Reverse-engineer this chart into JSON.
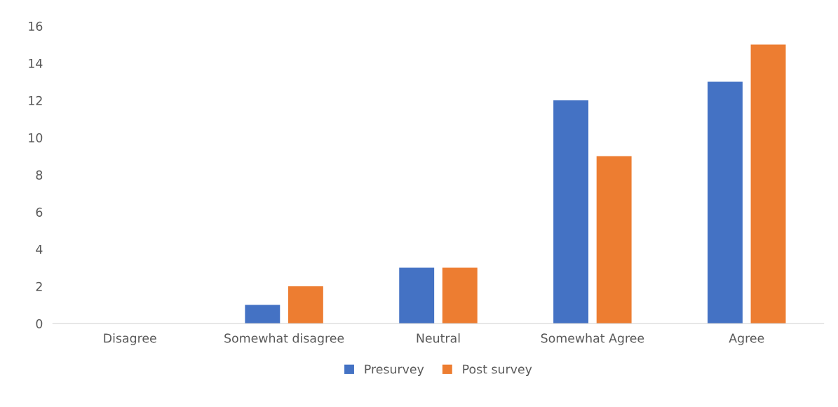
{
  "chart_data": {
    "type": "bar",
    "categories": [
      "Disagree",
      "Somewhat disagree",
      "Neutral",
      "Somewhat Agree",
      "Agree"
    ],
    "series": [
      {
        "name": "Presurvey",
        "color": "#4472c4",
        "values": [
          0,
          1,
          3,
          12,
          13
        ]
      },
      {
        "name": "Post survey",
        "color": "#ed7d31",
        "values": [
          0,
          2,
          3,
          9,
          15
        ]
      }
    ],
    "ylim": [
      0,
      16
    ],
    "yticks": [
      0,
      2,
      4,
      6,
      8,
      10,
      12,
      14,
      16
    ],
    "grid": false,
    "legend": "bottom"
  }
}
